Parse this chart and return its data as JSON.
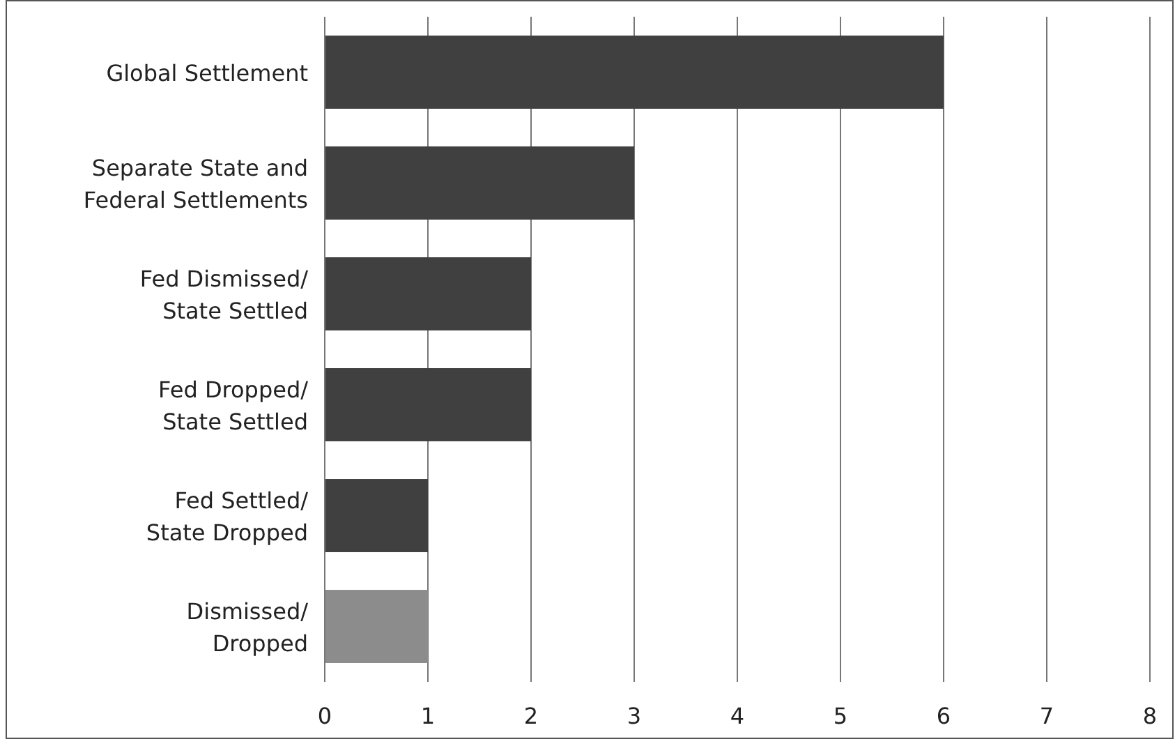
{
  "chart_data": {
    "type": "bar",
    "orientation": "horizontal",
    "categories": [
      "Global Settlement",
      "Separate State and\nFederal Settlements",
      "Fed Dismissed/\nState Settled",
      "Fed Dropped/\nState Settled",
      "Fed Settled/\nState Dropped",
      "Dismissed/\nDropped"
    ],
    "values": [
      6,
      3,
      2,
      2,
      1,
      1
    ],
    "colors": [
      "#404040",
      "#404040",
      "#404040",
      "#404040",
      "#404040",
      "#8c8c8c"
    ],
    "xlim": [
      0,
      8
    ],
    "xticks": [
      0,
      1,
      2,
      3,
      4,
      5,
      6,
      7,
      8
    ],
    "grid": "x"
  }
}
